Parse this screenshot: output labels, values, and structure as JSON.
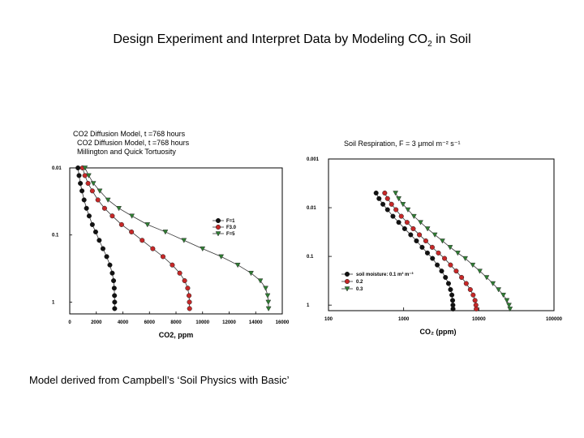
{
  "slide": {
    "title_prefix": "Design Experiment and Interpret Data by Modeling CO",
    "title_sub": "2",
    "title_suffix": " in Soil",
    "caption": "Model derived from Campbell’s ‘Soil Physics with Basic’"
  },
  "chart_data": [
    {
      "type": "line",
      "header_lines": [
        "CO2 Diffusion Model, t =768 hours",
        "CO2 Diffusion Model, t =768 hours",
        "Millington and Quick Tortuosity"
      ],
      "xlabel": "CO2, ppm",
      "ylabel": "",
      "xlim": [
        0,
        16000
      ],
      "ylim": [
        0.01,
        1.5
      ],
      "yscale": "log",
      "y_inverted": true,
      "x_ticks": [
        "0",
        "2000",
        "4000",
        "6000",
        "8000",
        "10000",
        "12000",
        "14000",
        "16000"
      ],
      "y_ticks": [
        "0.01",
        "0.1",
        "1"
      ],
      "legend_position": "right",
      "depth": [
        0.01,
        0.013,
        0.017,
        0.022,
        0.03,
        0.04,
        0.052,
        0.07,
        0.09,
        0.12,
        0.16,
        0.21,
        0.28,
        0.37,
        0.48,
        0.62,
        0.8,
        1.0,
        1.25
      ],
      "series": [
        {
          "name": "F=1",
          "color": "#111111",
          "marker": "circle",
          "values": [
            620,
            700,
            800,
            920,
            1080,
            1260,
            1460,
            1700,
            1950,
            2220,
            2500,
            2780,
            3020,
            3200,
            3300,
            3350,
            3370,
            3380,
            3380
          ]
        },
        {
          "name": "F3.0",
          "color": "#c62828",
          "marker": "circle",
          "values": [
            960,
            1140,
            1380,
            1700,
            2120,
            2620,
            3200,
            3900,
            4650,
            5450,
            6250,
            7020,
            7720,
            8280,
            8650,
            8880,
            8980,
            9010,
            9020
          ]
        },
        {
          "name": "F=5",
          "color": "#2e7d32",
          "marker": "triangle",
          "values": [
            1150,
            1430,
            1780,
            2260,
            2880,
            3700,
            4680,
            5850,
            7200,
            8600,
            10000,
            11400,
            12650,
            13650,
            14350,
            14750,
            14900,
            14950,
            14970
          ]
        }
      ]
    },
    {
      "type": "line",
      "title": "Soil Respiration, F = 3 μmol m⁻² s⁻¹",
      "xlabel": "CO₂ (ppm)",
      "ylabel": "",
      "xlim": [
        100,
        100000
      ],
      "xscale": "log",
      "ylim": [
        0.001,
        1.3
      ],
      "yscale": "log",
      "y_inverted": true,
      "x_ticks": [
        "100",
        "1000",
        "10000",
        "100000"
      ],
      "y_ticks": [
        "0.001",
        "0.01",
        "0.1",
        "1"
      ],
      "legend_position": "bottom-left",
      "depth": [
        0.005,
        0.0065,
        0.0085,
        0.011,
        0.015,
        0.02,
        0.027,
        0.036,
        0.048,
        0.065,
        0.085,
        0.11,
        0.15,
        0.2,
        0.27,
        0.36,
        0.48,
        0.62,
        0.8,
        1.0,
        1.2
      ],
      "series": [
        {
          "name": "soil moisture: 0.1 m³ m⁻³",
          "color": "#111111",
          "marker": "circle",
          "values": [
            430,
            470,
            530,
            610,
            720,
            860,
            1030,
            1240,
            1480,
            1760,
            2070,
            2420,
            2800,
            3200,
            3600,
            3950,
            4200,
            4380,
            4480,
            4520,
            4540
          ]
        },
        {
          "name": "0.2",
          "color": "#c62828",
          "marker": "circle",
          "values": [
            560,
            610,
            690,
            790,
            930,
            1110,
            1340,
            1620,
            1970,
            2400,
            2900,
            3500,
            4200,
            5000,
            5900,
            6800,
            7700,
            8400,
            8900,
            9150,
            9250
          ]
        },
        {
          "name": "0.3",
          "color": "#2e7d32",
          "marker": "triangle",
          "values": [
            780,
            860,
            980,
            1140,
            1370,
            1680,
            2080,
            2600,
            3280,
            4150,
            5250,
            6600,
            8300,
            10300,
            12700,
            15400,
            18300,
            21200,
            23600,
            25200,
            26000
          ]
        }
      ]
    }
  ]
}
